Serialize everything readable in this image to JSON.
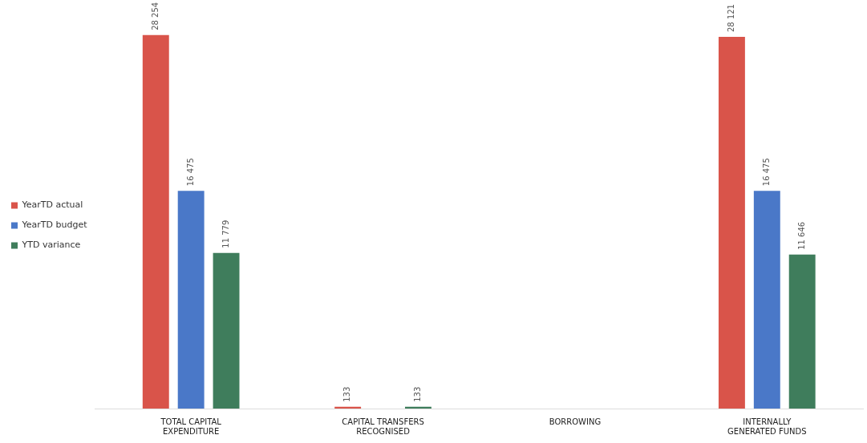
{
  "chart_data": {
    "type": "bar",
    "categories": [
      "TOTAL CAPITAL EXPENDITURE",
      "CAPITAL TRANSFERS RECOGNISED",
      "BORROWING",
      "INTERNALLY GENERATED FUNDS"
    ],
    "series": [
      {
        "name": "YearTD actual",
        "color": "#d9544a",
        "values": [
          28254,
          133,
          0,
          28121
        ],
        "value_labels": [
          "28 254",
          "133",
          null,
          "28 121"
        ]
      },
      {
        "name": "YearTD budget",
        "color": "#4a78c8",
        "values": [
          16475,
          0,
          0,
          16475
        ],
        "value_labels": [
          "16 475",
          null,
          null,
          "16 475"
        ]
      },
      {
        "name": "YTD variance",
        "color": "#3f7d5c",
        "values": [
          11779,
          133,
          0,
          11646
        ],
        "value_labels": [
          "11 779",
          "133",
          null,
          "11 646"
        ]
      }
    ],
    "legend": "left"
  }
}
